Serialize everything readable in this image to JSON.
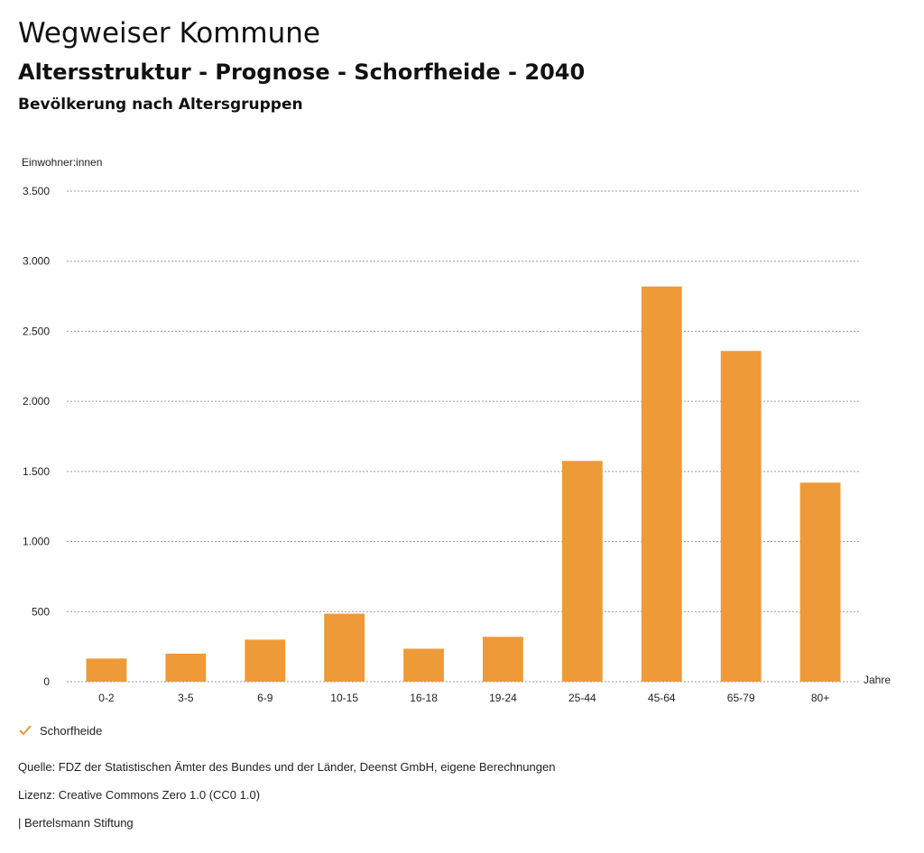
{
  "header": {
    "title": "Wegweiser Kommune",
    "subtitle": "Altersstruktur - Prognose - Schorfheide - 2040",
    "subsubtitle": "Bevölkerung nach Altersgruppen"
  },
  "chart_data": {
    "type": "bar",
    "ylabel": "Einwohner:innen",
    "xlabel": "Jahre",
    "ylim": [
      0,
      3500
    ],
    "yticks": [
      0,
      500,
      1000,
      1500,
      2000,
      2500,
      3000,
      3500
    ],
    "ytick_labels": [
      "0",
      "500",
      "1.000",
      "1.500",
      "2.000",
      "2.500",
      "3.000",
      "3.500"
    ],
    "categories": [
      "0-2",
      "3-5",
      "6-9",
      "10-15",
      "16-18",
      "19-24",
      "25-44",
      "45-64",
      "65-79",
      "80+"
    ],
    "series": [
      {
        "name": "Schorfheide",
        "color": "#ee9a38",
        "values": [
          165,
          200,
          300,
          485,
          235,
          320,
          1575,
          2820,
          2360,
          1420
        ]
      }
    ],
    "grid": true,
    "legend_position": "bottom-left"
  },
  "legend": {
    "label": "Schorfheide",
    "icon": "checkmark-icon",
    "color": "#ee9a38"
  },
  "footer": {
    "source": "Quelle: FDZ der Statistischen Ämter des Bundes und der Länder, Deenst GmbH, eigene Berechnungen",
    "license": "Lizenz: Creative Commons Zero 1.0 (CC0 1.0)",
    "org": "| Bertelsmann Stiftung"
  }
}
